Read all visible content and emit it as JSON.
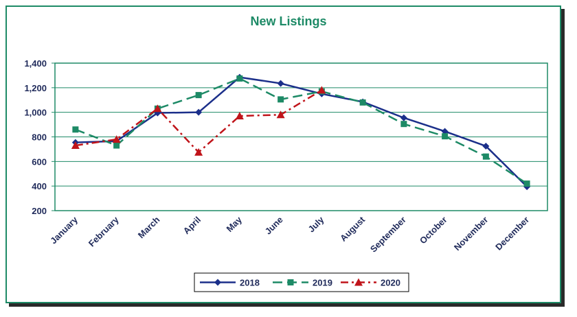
{
  "chart_data": {
    "type": "line",
    "title": "New Listings",
    "categories": [
      "January",
      "February",
      "March",
      "April",
      "May",
      "June",
      "July",
      "August",
      "September",
      "October",
      "November",
      "December"
    ],
    "y_ticks": [
      "1,400",
      "1,200",
      "1,000",
      "800",
      "600",
      "400",
      "200"
    ],
    "ylim": [
      200,
      1400
    ],
    "grid": true,
    "legend_position": "bottom",
    "series": [
      {
        "name": "2018",
        "color": "#1b2f8a",
        "marker": "diamond",
        "dash": "solid",
        "values": [
          755,
          765,
          995,
          1000,
          1285,
          1235,
          1150,
          1085,
          955,
          845,
          725,
          395
        ]
      },
      {
        "name": "2019",
        "color": "#1d8a66",
        "marker": "square",
        "dash": "dash",
        "values": [
          860,
          730,
          1030,
          1140,
          1275,
          1105,
          1170,
          1080,
          905,
          805,
          640,
          420
        ]
      },
      {
        "name": "2020",
        "color": "#c0141a",
        "marker": "triangle",
        "dash": "dashdot",
        "values": [
          730,
          780,
          1030,
          675,
          970,
          980,
          1180,
          null,
          null,
          null,
          null,
          null
        ]
      }
    ]
  }
}
